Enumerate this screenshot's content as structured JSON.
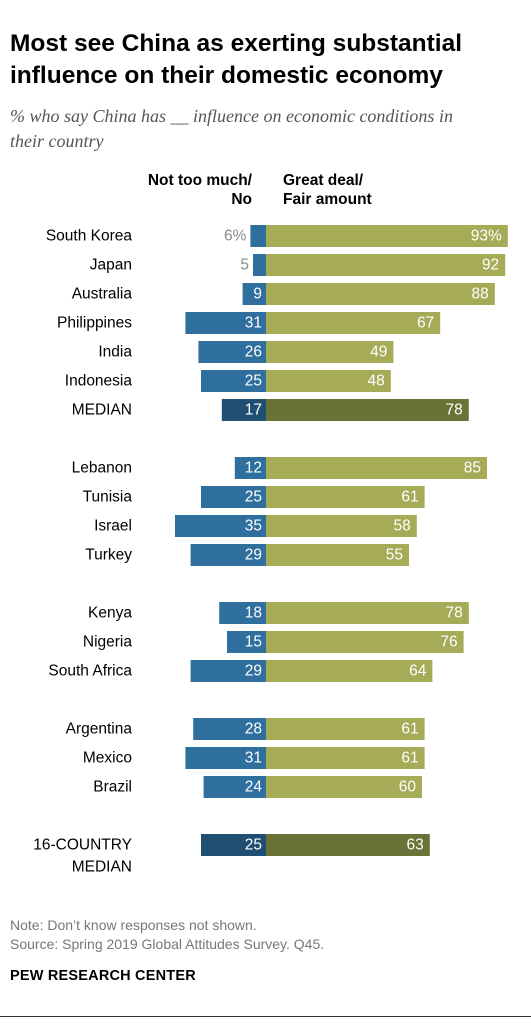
{
  "header": {
    "title": "Most see China as exerting substantial influence on their domestic economy",
    "subtitle": "% who say China has __ influence on economic conditions in their country"
  },
  "chart_data": {
    "type": "bar",
    "orientation": "horizontal-diverging",
    "series": [
      {
        "name": "Not too much/ No",
        "key": "no",
        "color": "#2e6f9e"
      },
      {
        "name": "Great deal/ Fair amount",
        "key": "great",
        "color": "#a5ab57"
      }
    ],
    "groups": [
      {
        "rows": [
          {
            "label": "South Korea",
            "no": 6,
            "great": 93,
            "no_text": "6%",
            "great_text": "93%"
          },
          {
            "label": "Japan",
            "no": 5,
            "great": 92,
            "no_text": "5",
            "great_text": "92"
          },
          {
            "label": "Australia",
            "no": 9,
            "great": 88,
            "no_text": "9",
            "great_text": "88"
          },
          {
            "label": "Philippines",
            "no": 31,
            "great": 67,
            "no_text": "31",
            "great_text": "67"
          },
          {
            "label": "India",
            "no": 26,
            "great": 49,
            "no_text": "26",
            "great_text": "49"
          },
          {
            "label": "Indonesia",
            "no": 25,
            "great": 48,
            "no_text": "25",
            "great_text": "48"
          },
          {
            "label": "MEDIAN",
            "no": 17,
            "great": 78,
            "no_text": "17",
            "great_text": "78",
            "median": true
          }
        ]
      },
      {
        "rows": [
          {
            "label": "Lebanon",
            "no": 12,
            "great": 85,
            "no_text": "12",
            "great_text": "85"
          },
          {
            "label": "Tunisia",
            "no": 25,
            "great": 61,
            "no_text": "25",
            "great_text": "61"
          },
          {
            "label": "Israel",
            "no": 35,
            "great": 58,
            "no_text": "35",
            "great_text": "58"
          },
          {
            "label": "Turkey",
            "no": 29,
            "great": 55,
            "no_text": "29",
            "great_text": "55"
          }
        ]
      },
      {
        "rows": [
          {
            "label": "Kenya",
            "no": 18,
            "great": 78,
            "no_text": "18",
            "great_text": "78"
          },
          {
            "label": "Nigeria",
            "no": 15,
            "great": 76,
            "no_text": "15",
            "great_text": "76"
          },
          {
            "label": "South Africa",
            "no": 29,
            "great": 64,
            "no_text": "29",
            "great_text": "64"
          }
        ]
      },
      {
        "rows": [
          {
            "label": "Argentina",
            "no": 28,
            "great": 61,
            "no_text": "28",
            "great_text": "61"
          },
          {
            "label": "Mexico",
            "no": 31,
            "great": 61,
            "no_text": "31",
            "great_text": "61"
          },
          {
            "label": "Brazil",
            "no": 24,
            "great": 60,
            "no_text": "24",
            "great_text": "60"
          }
        ]
      },
      {
        "rows": [
          {
            "label": "16-COUNTRY MEDIAN",
            "label_lines": [
              "16-COUNTRY",
              "MEDIAN"
            ],
            "no": 25,
            "great": 63,
            "no_text": "25",
            "great_text": "63",
            "median": true
          }
        ]
      }
    ],
    "colors": {
      "no": "#2e6f9e",
      "great": "#a5ab57",
      "no_median": "#1f4f72",
      "great_median": "#6b7237",
      "outside_label": "#8a8a8a"
    }
  },
  "columns": {
    "left_line1": "Not too much/",
    "left_line2": "No",
    "right_line1": "Great deal/",
    "right_line2": "Fair amount"
  },
  "footer": {
    "note": "Note: Don’t know responses not shown.",
    "source": "Source: Spring 2019 Global Attitudes Survey. Q45.",
    "brand": "PEW RESEARCH CENTER"
  }
}
